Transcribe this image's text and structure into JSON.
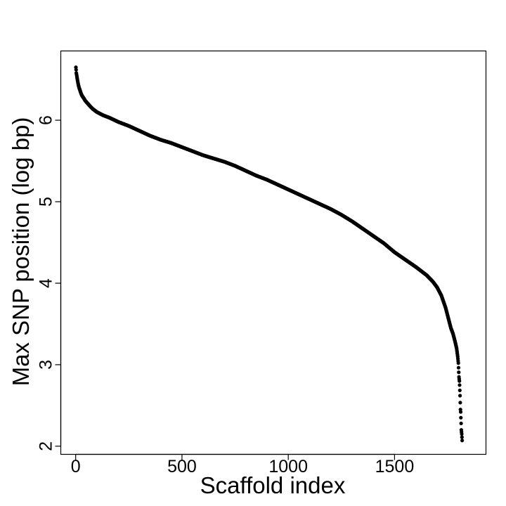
{
  "chart_data": {
    "type": "scatter",
    "title": "",
    "xlabel": "Scaffold index",
    "ylabel": "Max SNP position (log bp)",
    "xlim": [
      -70,
      1930
    ],
    "ylim": [
      1.9,
      6.85
    ],
    "xticks": [
      0,
      500,
      1000,
      1500
    ],
    "xtick_labels": [
      "0",
      "500",
      "1000",
      "1500"
    ],
    "yticks": [
      2,
      3,
      4,
      5,
      6
    ],
    "ytick_labels": [
      "2",
      "3",
      "4",
      "5",
      "6"
    ],
    "grid": false,
    "legend": "none",
    "point_color": "#000000",
    "n_points": 1818,
    "points": [
      [
        1,
        6.65
      ],
      [
        2,
        6.62
      ],
      [
        3,
        6.58
      ],
      [
        5,
        6.55
      ],
      [
        8,
        6.5
      ],
      [
        10,
        6.47
      ],
      [
        13,
        6.43
      ],
      [
        16,
        6.4
      ],
      [
        20,
        6.37
      ],
      [
        25,
        6.33
      ],
      [
        30,
        6.3
      ],
      [
        38,
        6.27
      ],
      [
        45,
        6.24
      ],
      [
        55,
        6.21
      ],
      [
        65,
        6.18
      ],
      [
        80,
        6.14
      ],
      [
        100,
        6.1
      ],
      [
        130,
        6.06
      ],
      [
        160,
        6.03
      ],
      [
        200,
        5.98
      ],
      [
        250,
        5.93
      ],
      [
        300,
        5.87
      ],
      [
        350,
        5.81
      ],
      [
        400,
        5.76
      ],
      [
        450,
        5.72
      ],
      [
        500,
        5.67
      ],
      [
        550,
        5.62
      ],
      [
        600,
        5.57
      ],
      [
        650,
        5.53
      ],
      [
        700,
        5.49
      ],
      [
        750,
        5.44
      ],
      [
        800,
        5.38
      ],
      [
        850,
        5.32
      ],
      [
        900,
        5.27
      ],
      [
        950,
        5.21
      ],
      [
        1000,
        5.15
      ],
      [
        1050,
        5.09
      ],
      [
        1100,
        5.03
      ],
      [
        1150,
        4.97
      ],
      [
        1200,
        4.91
      ],
      [
        1250,
        4.84
      ],
      [
        1300,
        4.76
      ],
      [
        1350,
        4.67
      ],
      [
        1400,
        4.58
      ],
      [
        1450,
        4.49
      ],
      [
        1500,
        4.38
      ],
      [
        1550,
        4.29
      ],
      [
        1600,
        4.2
      ],
      [
        1650,
        4.1
      ],
      [
        1680,
        4.02
      ],
      [
        1700,
        3.95
      ],
      [
        1720,
        3.85
      ],
      [
        1740,
        3.7
      ],
      [
        1755,
        3.55
      ],
      [
        1765,
        3.45
      ],
      [
        1775,
        3.38
      ],
      [
        1785,
        3.28
      ],
      [
        1792,
        3.2
      ],
      [
        1797,
        3.1
      ],
      [
        1800,
        3.02
      ],
      [
        1803,
        2.85
      ],
      [
        1805,
        2.8
      ],
      [
        1806,
        2.75
      ],
      [
        1808,
        2.62
      ],
      [
        1810,
        2.45
      ],
      [
        1811,
        2.42
      ],
      [
        1812,
        2.35
      ],
      [
        1813,
        2.28
      ],
      [
        1814,
        2.2
      ],
      [
        1816,
        2.15
      ],
      [
        1818,
        2.07
      ]
    ]
  }
}
